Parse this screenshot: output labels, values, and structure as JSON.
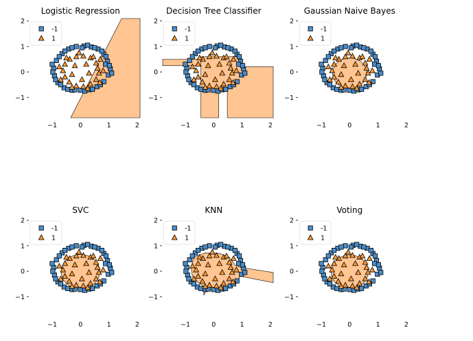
{
  "figure": {
    "colors": {
      "class_neg": "#4b8cc9",
      "class_pos": "#ff9a36",
      "region_pos": "#ffc593",
      "edge": "#000000"
    }
  },
  "chart_data": [
    {
      "type": "scatter",
      "title": "Logistic Regression",
      "region": "logreg",
      "xlim": [
        -1.8,
        2.1
      ],
      "ylim": [
        -1.8,
        2.1
      ],
      "xticks": [
        -1,
        0,
        1,
        2
      ],
      "yticks": [
        -1,
        0,
        1,
        2
      ],
      "legend": [
        {
          "label": "-1",
          "marker": "square"
        },
        {
          "label": "1",
          "marker": "triangle"
        }
      ],
      "legend_position": "top-left"
    },
    {
      "type": "scatter",
      "title": "Decision Tree Classifier",
      "region": "tree",
      "xlim": [
        -1.8,
        2.1
      ],
      "ylim": [
        -1.8,
        2.1
      ],
      "xticks": [
        -1,
        0,
        1,
        2
      ],
      "yticks": [
        -1,
        0,
        1,
        2
      ],
      "legend": [
        {
          "label": "-1",
          "marker": "square"
        },
        {
          "label": "1",
          "marker": "triangle"
        }
      ],
      "legend_position": "top-left"
    },
    {
      "type": "scatter",
      "title": "Gaussian Naive Bayes",
      "region": "gnb",
      "xlim": [
        -1.8,
        2.1
      ],
      "ylim": [
        -1.8,
        2.1
      ],
      "xticks": [
        -1,
        0,
        1,
        2
      ],
      "yticks": [
        -1,
        0,
        1,
        2
      ],
      "legend": [
        {
          "label": "-1",
          "marker": "square"
        },
        {
          "label": "1",
          "marker": "triangle"
        }
      ],
      "legend_position": "top-left"
    },
    {
      "type": "scatter",
      "title": "SVC",
      "region": "svc",
      "xlim": [
        -1.8,
        2.1
      ],
      "ylim": [
        -1.8,
        2.1
      ],
      "xticks": [
        -1,
        0,
        1,
        2
      ],
      "yticks": [
        -1,
        0,
        1,
        2
      ],
      "legend": [
        {
          "label": "-1",
          "marker": "square"
        },
        {
          "label": "1",
          "marker": "triangle"
        }
      ],
      "legend_position": "top-left"
    },
    {
      "type": "scatter",
      "title": "KNN",
      "region": "knn",
      "xlim": [
        -1.8,
        2.1
      ],
      "ylim": [
        -1.8,
        2.1
      ],
      "xticks": [
        -1,
        0,
        1,
        2
      ],
      "yticks": [
        -1,
        0,
        1,
        2
      ],
      "legend": [
        {
          "label": "-1",
          "marker": "square"
        },
        {
          "label": "1",
          "marker": "triangle"
        }
      ],
      "legend_position": "top-left"
    },
    {
      "type": "scatter",
      "title": "Voting",
      "region": "vote",
      "xlim": [
        -1.8,
        2.1
      ],
      "ylim": [
        -1.8,
        2.1
      ],
      "xticks": [
        -1,
        0,
        1,
        2
      ],
      "yticks": [
        -1,
        0,
        1,
        2
      ],
      "legend": [
        {
          "label": "-1",
          "marker": "square"
        },
        {
          "label": "1",
          "marker": "triangle"
        }
      ],
      "legend_position": "top-left"
    }
  ],
  "points": {
    "class_-1": [
      [
        1.05,
        0.12
      ],
      [
        0.95,
        0.42
      ],
      [
        0.82,
        0.7
      ],
      [
        0.62,
        0.9
      ],
      [
        0.38,
        0.98
      ],
      [
        0.12,
        1.02
      ],
      [
        -0.15,
        1.0
      ],
      [
        -0.42,
        0.9
      ],
      [
        -0.65,
        0.72
      ],
      [
        -0.85,
        0.45
      ],
      [
        -0.95,
        0.15
      ],
      [
        -0.92,
        -0.15
      ],
      [
        -0.8,
        -0.42
      ],
      [
        -0.58,
        -0.62
      ],
      [
        -0.3,
        -0.72
      ],
      [
        0.0,
        -0.72
      ],
      [
        0.3,
        -0.7
      ],
      [
        0.58,
        -0.58
      ],
      [
        0.82,
        -0.38
      ],
      [
        0.98,
        -0.12
      ],
      [
        1.1,
        -0.05
      ],
      [
        0.9,
        0.6
      ],
      [
        0.5,
        0.95
      ],
      [
        -0.3,
        0.95
      ],
      [
        -0.75,
        0.6
      ],
      [
        -1.0,
        0.3
      ],
      [
        -0.88,
        -0.3
      ],
      [
        -0.45,
        -0.68
      ],
      [
        0.15,
        -0.75
      ],
      [
        0.7,
        -0.5
      ],
      [
        0.88,
        0.3
      ],
      [
        0.25,
        1.05
      ],
      [
        -0.55,
        0.82
      ],
      [
        -0.98,
        0.0
      ],
      [
        0.42,
        -0.68
      ],
      [
        1.02,
        0.25
      ],
      [
        -0.2,
        -0.7
      ],
      [
        0.75,
        0.82
      ],
      [
        -0.7,
        -0.5
      ],
      [
        0.05,
        0.95
      ]
    ],
    "class_1": [
      [
        0.55,
        0.35
      ],
      [
        0.35,
        0.55
      ],
      [
        0.1,
        0.62
      ],
      [
        -0.15,
        0.6
      ],
      [
        -0.38,
        0.5
      ],
      [
        -0.55,
        0.3
      ],
      [
        -0.62,
        0.05
      ],
      [
        -0.55,
        -0.2
      ],
      [
        -0.4,
        -0.4
      ],
      [
        -0.15,
        -0.55
      ],
      [
        0.1,
        -0.58
      ],
      [
        0.35,
        -0.48
      ],
      [
        0.55,
        -0.3
      ],
      [
        0.65,
        -0.05
      ],
      [
        0.6,
        0.15
      ],
      [
        0.2,
        0.3
      ],
      [
        -0.2,
        0.25
      ],
      [
        -0.3,
        -0.1
      ],
      [
        0.05,
        -0.3
      ],
      [
        0.3,
        -0.05
      ],
      [
        0.45,
        0.6
      ],
      [
        -0.5,
        0.55
      ],
      [
        -0.7,
        -0.3
      ],
      [
        0.7,
        0.5
      ],
      [
        -0.05,
        0.75
      ],
      [
        0.8,
        0.05
      ],
      [
        -0.75,
        0.2
      ],
      [
        0.25,
        -0.65
      ],
      [
        -0.3,
        -0.6
      ],
      [
        0.68,
        -0.42
      ]
    ]
  }
}
